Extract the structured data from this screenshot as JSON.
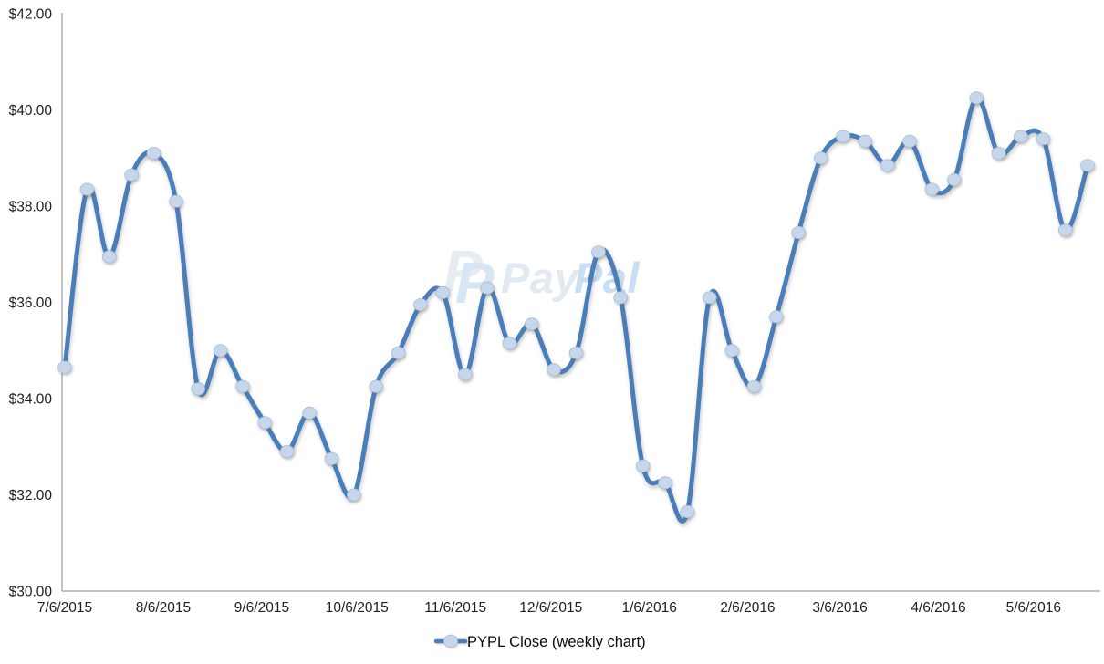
{
  "page": {
    "background": "#ffffff"
  },
  "chart_data": {
    "type": "line",
    "title": "",
    "legend_label": "PYPL Close (weekly chart)",
    "legend_position": "bottom-center",
    "grid": false,
    "smoothed_line": true,
    "x_unit": "weeks",
    "ylim": [
      30,
      42
    ],
    "y_tick_step": 2,
    "y_tick_labels": [
      "$42.00",
      "$40.00",
      "$38.00",
      "$36.00",
      "$34.00",
      "$32.00",
      "$30.00"
    ],
    "x_tick_labels": [
      "7/6/2015",
      "8/6/2015",
      "9/6/2015",
      "10/6/2015",
      "11/6/2015",
      "12/6/2015",
      "1/6/2016",
      "2/6/2016",
      "3/6/2016",
      "4/6/2016",
      "5/6/2016"
    ],
    "x_tick_week_positions": [
      0,
      4.43,
      8.86,
      13.14,
      17.57,
      21.86,
      26.29,
      30.71,
      34.86,
      39.29,
      43.57
    ],
    "series": [
      {
        "name": "PYPL Close (weekly chart)",
        "values": [
          34.65,
          38.35,
          36.95,
          38.65,
          39.1,
          38.1,
          34.2,
          35.0,
          34.25,
          33.5,
          32.9,
          33.7,
          32.75,
          32.0,
          34.25,
          34.95,
          35.95,
          36.2,
          34.5,
          36.3,
          35.15,
          35.55,
          34.6,
          34.95,
          37.05,
          36.1,
          32.6,
          32.25,
          31.65,
          36.1,
          35.0,
          34.25,
          35.7,
          37.45,
          39.0,
          39.45,
          39.35,
          38.85,
          39.35,
          38.35,
          38.55,
          40.25,
          39.1,
          39.45,
          39.4,
          37.5,
          38.85
        ]
      }
    ],
    "colors": {
      "line": "#4a7eba",
      "marker_fill": "#c6d6eb",
      "marker_edge": "#a9c0dc",
      "axis": "#9b9b9b",
      "tick_text": "#1f1f1f",
      "legend_text": "#0a0a0a"
    },
    "watermark": {
      "brand": "PayPal",
      "icon": "paypal-double-p-icon",
      "icon_glyph": "P",
      "wordmark_part1": "Pay",
      "wordmark_part2": "Pal",
      "icon_back_color": "#e8ebf1",
      "icon_front_color": "#d7e5f5",
      "word_part1_color": "#e3e9f1",
      "word_part2_color": "#c9dff4"
    }
  }
}
